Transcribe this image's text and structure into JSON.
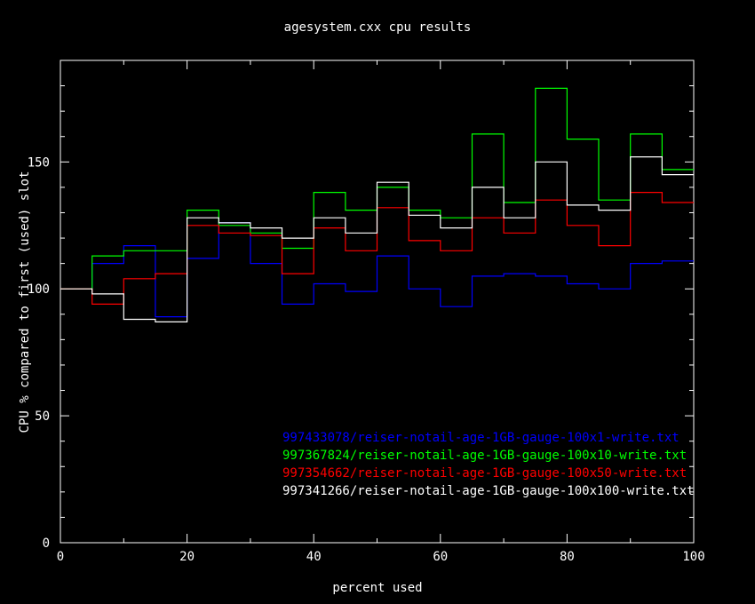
{
  "chart_data": {
    "type": "line",
    "step": true,
    "title": "agesystem.cxx cpu results",
    "xlabel": "percent used",
    "ylabel": "CPU % compared to first (used) slot",
    "xlim": [
      0,
      100
    ],
    "ylim": [
      0,
      190
    ],
    "xticks": [
      0,
      20,
      40,
      60,
      80,
      100
    ],
    "yticks": [
      0,
      50,
      100,
      150
    ],
    "grid": false,
    "legend_position": "bottom-right",
    "x": [
      0,
      5,
      10,
      15,
      20,
      25,
      30,
      35,
      40,
      45,
      50,
      55,
      60,
      65,
      70,
      75,
      80,
      85,
      90,
      95
    ],
    "series": [
      {
        "name": "997433078/reiser-notail-age-1GB-gauge-100x1-write.txt",
        "color": "#0000ff",
        "values": [
          100,
          110,
          117,
          89,
          112,
          126,
          110,
          94,
          102,
          99,
          113,
          100,
          93,
          105,
          106,
          105,
          102,
          100,
          110,
          111
        ]
      },
      {
        "name": "997367824/reiser-notail-age-1GB-gauge-100x10-write.txt",
        "color": "#00ff00",
        "values": [
          100,
          113,
          115,
          115,
          131,
          125,
          122,
          116,
          138,
          131,
          140,
          131,
          128,
          161,
          134,
          179,
          159,
          135,
          161,
          147
        ]
      },
      {
        "name": "997354662/reiser-notail-age-1GB-gauge-100x50-write.txt",
        "color": "#ff0000",
        "values": [
          100,
          94,
          104,
          106,
          125,
          122,
          121,
          106,
          124,
          115,
          132,
          119,
          115,
          128,
          122,
          135,
          125,
          117,
          138,
          134
        ]
      },
      {
        "name": "997341266/reiser-notail-age-1GB-gauge-100x100-write.txt",
        "color": "#ffffff",
        "values": [
          100,
          98,
          88,
          87,
          128,
          126,
          124,
          120,
          128,
          122,
          142,
          129,
          124,
          140,
          128,
          150,
          133,
          131,
          152,
          145
        ]
      }
    ]
  }
}
